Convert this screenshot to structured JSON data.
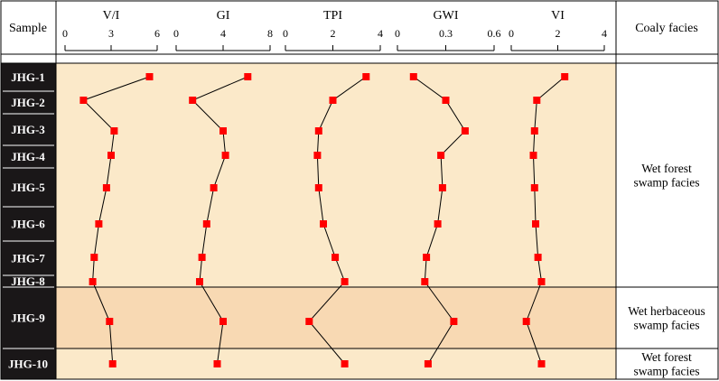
{
  "chart_data": {
    "type": "line",
    "header": {
      "sample_label": "Sample",
      "facies_label": "Coaly facies"
    },
    "samples": [
      "JHG-1",
      "JHG-2",
      "JHG-3",
      "JHG-4",
      "JHG-5",
      "JHG-6",
      "JHG-7",
      "JHG-8",
      "JHG-9",
      "JHG-10"
    ],
    "series": [
      {
        "name": "V/I",
        "ticks": [
          "0",
          "3",
          "6"
        ],
        "range": [
          0,
          6
        ],
        "values": [
          5.5,
          1.2,
          3.2,
          3.0,
          2.7,
          2.2,
          1.9,
          1.8,
          2.9,
          3.1
        ]
      },
      {
        "name": "GI",
        "ticks": [
          "0",
          "4",
          "8"
        ],
        "range": [
          0,
          8
        ],
        "values": [
          6.1,
          1.4,
          4.0,
          4.2,
          3.2,
          2.6,
          2.2,
          2.0,
          4.0,
          3.5
        ]
      },
      {
        "name": "TPI",
        "ticks": [
          "0",
          "2",
          "4"
        ],
        "range": [
          0,
          4
        ],
        "values": [
          3.4,
          2.0,
          1.4,
          1.35,
          1.4,
          1.6,
          2.1,
          2.5,
          1.0,
          2.5
        ]
      },
      {
        "name": "GWI",
        "ticks": [
          "0",
          "0.3",
          "0.6"
        ],
        "range": [
          0,
          0.6
        ],
        "values": [
          0.1,
          0.3,
          0.42,
          0.27,
          0.28,
          0.25,
          0.18,
          0.17,
          0.35,
          0.19
        ]
      },
      {
        "name": "VI",
        "ticks": [
          "0",
          "2",
          "4"
        ],
        "range": [
          0,
          4
        ],
        "values": [
          2.3,
          1.1,
          1.0,
          0.95,
          1.0,
          1.05,
          1.15,
          1.3,
          0.65,
          1.3
        ]
      }
    ],
    "facies": [
      {
        "label_lines": [
          "Wet forest",
          "swamp facies"
        ],
        "samples": [
          "JHG-1",
          "JHG-2",
          "JHG-3",
          "JHG-4",
          "JHG-5",
          "JHG-6",
          "JHG-7",
          "JHG-8"
        ],
        "color": "#fbe9c9"
      },
      {
        "label_lines": [
          "Wet herbaceous",
          "swamp facies"
        ],
        "samples": [
          "JHG-9"
        ],
        "color": "#f8d9b3"
      },
      {
        "label_lines": [
          "Wet forest",
          "swamp facies"
        ],
        "samples": [
          "JHG-10"
        ],
        "color": "#fbe9c9"
      }
    ],
    "marker_color": "#ff0000",
    "line_color": "#000000",
    "sample_column_color": "#1a1718"
  }
}
